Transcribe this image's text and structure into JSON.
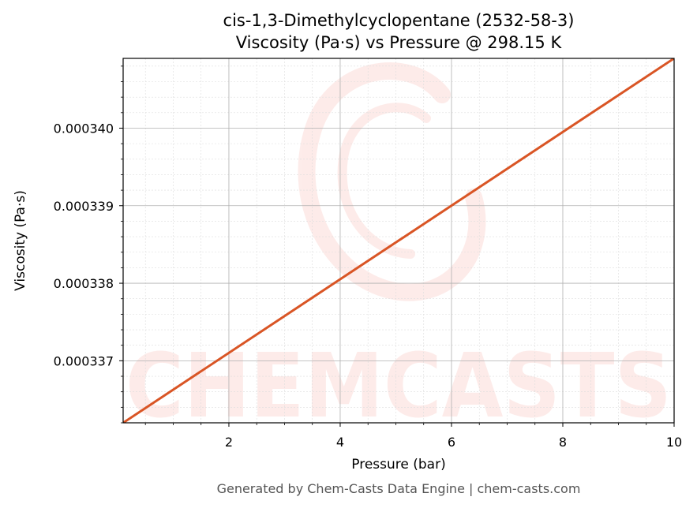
{
  "chart_data": {
    "type": "line",
    "title": "cis-1,3-Dimethylcyclopentane (2532-58-3)",
    "subtitle": "Viscosity (Pa·s) vs Pressure @ 298.15 K",
    "xlabel": "Pressure (bar)",
    "ylabel": "Viscosity (Pa·s)",
    "xlim": [
      0.1,
      10
    ],
    "ylim": [
      0.0003362,
      0.0003409
    ],
    "x_ticks": [
      2,
      4,
      6,
      8,
      10
    ],
    "x_tick_labels": [
      "2",
      "4",
      "6",
      "8",
      "10"
    ],
    "y_ticks": [
      0.000337,
      0.000338,
      0.000339,
      0.00034
    ],
    "y_tick_labels": [
      "0.000337",
      "0.000338",
      "0.000339",
      "0.000340"
    ],
    "grid": true,
    "series": [
      {
        "color": "#d95525",
        "x": [
          0.1,
          10
        ],
        "y": [
          0.0003362,
          0.0003409
        ]
      }
    ],
    "watermark": "CHEMCASTS",
    "footer": "Generated by Chem-Casts Data Engine | chem-casts.com"
  }
}
